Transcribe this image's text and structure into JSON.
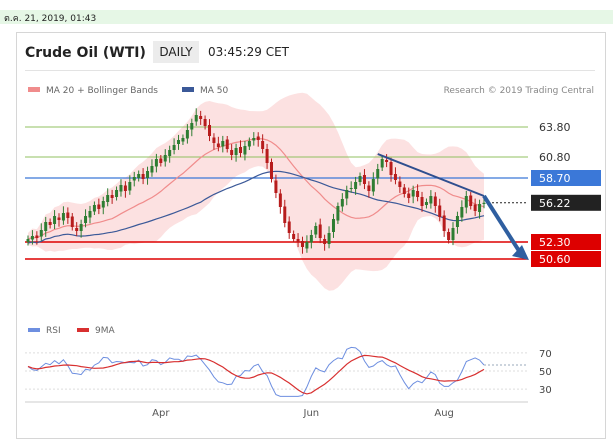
{
  "timestamp": "ต.ค. 21, 2019, 01:43",
  "header": {
    "title": "Crude Oil (WTI)",
    "timeframe": "DAILY",
    "time": "03:45:29 CET"
  },
  "legend": {
    "ma20_label": "MA 20 + Bollinger Bands",
    "ma50_label": "MA 50",
    "credit": "Research © 2019 Trading Central",
    "rsi_label": "RSI",
    "ma9_label": "9MA"
  },
  "colors": {
    "ma20": "#f08c8c",
    "ma50": "#3b5998",
    "band": "#fcdcdc",
    "rsi": "#6e8fe0",
    "ma9": "#d83030",
    "resistance": "#90c060",
    "pivot": "#3b78d8",
    "support": "#dd0000"
  },
  "chart_data": [
    {
      "type": "candlestick",
      "x_tick_labels": [
        "Apr",
        "Jun",
        "Aug"
      ],
      "levels": [
        {
          "value": 63.8,
          "label": "63.80",
          "kind": "resistance"
        },
        {
          "value": 60.8,
          "label": "60.80",
          "kind": "resistance"
        },
        {
          "value": 58.7,
          "label": "58.70",
          "kind": "pivot"
        },
        {
          "value": 56.22,
          "label": "56.22",
          "kind": "last"
        },
        {
          "value": 52.3,
          "label": "52.30",
          "kind": "support"
        },
        {
          "value": 50.6,
          "label": "50.60",
          "kind": "support"
        }
      ],
      "closes": [
        52.6,
        52.9,
        52.7,
        53.5,
        54.3,
        54.0,
        54.9,
        54.5,
        55.2,
        54.7,
        53.8,
        53.4,
        54.1,
        54.9,
        55.4,
        56.0,
        55.6,
        56.4,
        57.0,
        56.7,
        57.5,
        58.0,
        57.4,
        58.3,
        58.8,
        59.1,
        58.6,
        59.4,
        59.9,
        60.6,
        60.2,
        61.0,
        61.5,
        62.0,
        62.5,
        62.7,
        63.5,
        64.2,
        65.0,
        64.6,
        63.9,
        62.9,
        62.2,
        61.8,
        62.4,
        61.6,
        61.0,
        61.7,
        61.2,
        61.9,
        62.4,
        62.7,
        62.5,
        61.6,
        60.2,
        58.6,
        57.2,
        55.8,
        54.2,
        53.2,
        52.6,
        52.3,
        51.8,
        52.3,
        53.0,
        53.9,
        52.7,
        52.1,
        53.2,
        54.6,
        55.9,
        56.6,
        57.5,
        57.7,
        58.3,
        58.9,
        58.1,
        57.4,
        58.6,
        59.6,
        60.6,
        60.3,
        59.0,
        58.5,
        57.8,
        57.1,
        56.7,
        57.5,
        56.8,
        55.9,
        56.3,
        56.9,
        55.9,
        54.8,
        53.4,
        52.5,
        53.7,
        54.9,
        55.8,
        56.9,
        55.9,
        55.4,
        56.1,
        56.22
      ],
      "ylim": [
        45.5,
        66.5
      ]
    },
    {
      "type": "line",
      "title": "RSI",
      "series_names": [
        "RSI",
        "9MA"
      ],
      "y_tick_labels": [
        "70",
        "50",
        "30"
      ],
      "ylim": [
        18,
        82
      ]
    }
  ]
}
